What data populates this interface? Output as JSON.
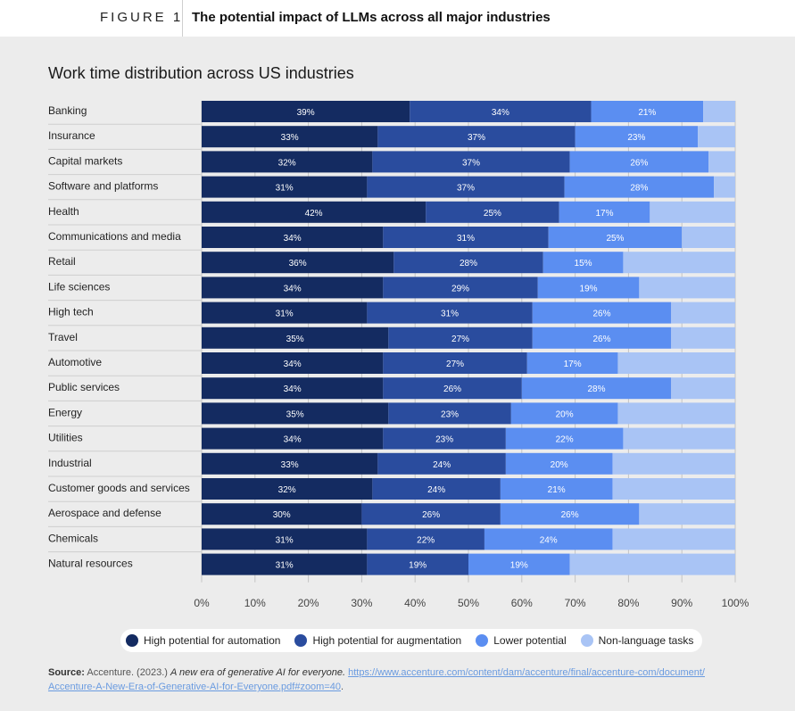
{
  "figure": {
    "label": "FIGURE 1",
    "title": "The potential impact of LLMs across all major industries"
  },
  "source": {
    "label": "Source:",
    "text": "Accenture. (2023.) ",
    "italic": "A new era of generative AI for everyone.",
    "link_line1": "https://www.accenture.com/content/dam/accenture/final/accenture-com/document/",
    "link_line2": "Accenture-A-New-Era-of-Generative-AI-for-Everyone.pdf#zoom=40",
    "end": "."
  },
  "chart_data": {
    "type": "bar",
    "orientation": "horizontal",
    "stacked": true,
    "title": "Work time distribution across US industries",
    "xlim": [
      0,
      100
    ],
    "x_ticks": [
      "0%",
      "10%",
      "20%",
      "30%",
      "40%",
      "50%",
      "60%",
      "70%",
      "80%",
      "90%",
      "100%"
    ],
    "grid": true,
    "legend_position": "bottom",
    "categories": [
      "Banking",
      "Insurance",
      "Capital markets",
      "Software and platforms",
      "Health",
      "Communications and media",
      "Retail",
      "Life sciences",
      "High tech",
      "Travel",
      "Automotive",
      "Public services",
      "Energy",
      "Utilities",
      "Industrial",
      "Customer goods and services",
      "Aerospace and defense",
      "Chemicals",
      "Natural resources"
    ],
    "series": [
      {
        "name": "High potential for automation",
        "color": "#142b61",
        "values": [
          39,
          33,
          32,
          31,
          42,
          34,
          36,
          34,
          31,
          35,
          34,
          34,
          35,
          34,
          33,
          32,
          30,
          31,
          31
        ]
      },
      {
        "name": "High potential for augmentation",
        "color": "#2a4c9e",
        "values": [
          34,
          37,
          37,
          37,
          25,
          31,
          28,
          29,
          31,
          27,
          27,
          26,
          23,
          23,
          24,
          24,
          26,
          22,
          19
        ]
      },
      {
        "name": "Lower potential",
        "color": "#5b8ef1",
        "values": [
          21,
          23,
          26,
          28,
          17,
          25,
          15,
          19,
          26,
          26,
          17,
          28,
          20,
          22,
          20,
          21,
          26,
          24,
          19
        ]
      },
      {
        "name": "Non-language tasks",
        "color": "#a9c4f5",
        "values": [
          6,
          7,
          5,
          4,
          16,
          10,
          21,
          18,
          12,
          12,
          22,
          12,
          22,
          21,
          23,
          23,
          18,
          23,
          31
        ]
      }
    ]
  }
}
